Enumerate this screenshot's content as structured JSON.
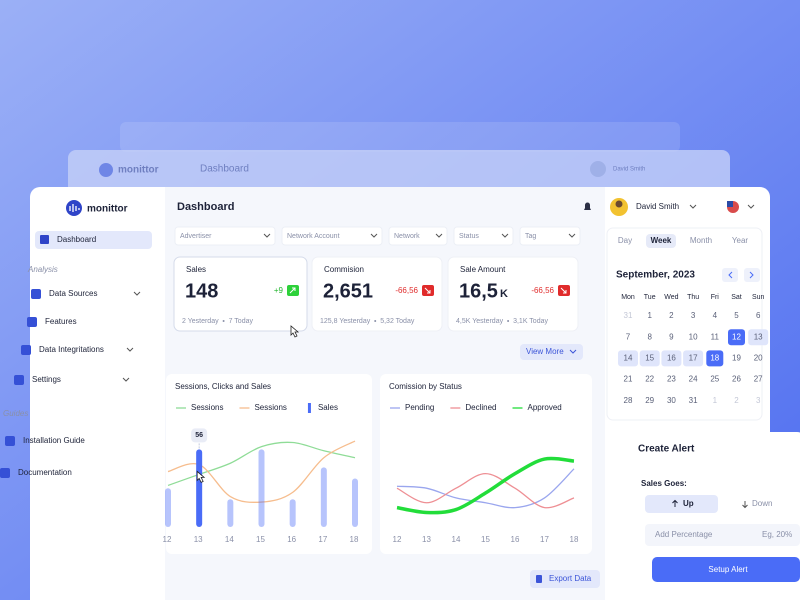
{
  "back_header": {
    "brand": "monittor",
    "title": "Dashboard",
    "user": "David Smith"
  },
  "sidebar": {
    "brand": "monittor",
    "active": "Dashboard",
    "sections": [
      {
        "title": "Analysis",
        "items": [
          "Data Sources",
          "Features",
          "Data Integritations",
          "Settings"
        ]
      },
      {
        "title": "Guides",
        "items": [
          "Installation Guide",
          "Documentation"
        ]
      }
    ]
  },
  "header": {
    "title": "Dashboard",
    "user": "David Smith"
  },
  "filters": [
    "Advertiser",
    "Network Account",
    "Network",
    "Status",
    "Tag"
  ],
  "stats": [
    {
      "label": "Sales",
      "value": "148",
      "change": "+9",
      "detail": [
        "2 Yesterday",
        "7 Today"
      ]
    },
    {
      "label": "Commision",
      "value": "2,651",
      "change": "-66,56",
      "detail": [
        "125,8 Yesterday",
        "5,32 Today"
      ]
    },
    {
      "label": "Sale Amount",
      "value": "16,5",
      "unit": "K",
      "change": "-66,56",
      "detail": [
        "4,5K Yesterday",
        "3,1K Today"
      ]
    }
  ],
  "view_more": "View More",
  "chart_data": [
    {
      "type": "combo",
      "title": "Sessions, Clicks and Sales",
      "categories": [
        "12",
        "13",
        "14",
        "15",
        "16",
        "17",
        "18"
      ],
      "ylim": [
        0,
        70
      ],
      "highlight": "13",
      "series": [
        {
          "name": "Sessions",
          "type": "line",
          "color": "#8fdc97",
          "values": [
            30,
            38,
            46,
            58,
            61,
            55,
            50
          ]
        },
        {
          "name": "Sessions",
          "type": "line",
          "color": "#f6bd8e",
          "values": [
            40,
            45,
            22,
            18,
            25,
            50,
            62
          ]
        },
        {
          "name": "Sales",
          "type": "bar",
          "color": "#4a6cf7",
          "values": [
            28,
            56,
            20,
            56,
            20,
            43,
            35
          ]
        }
      ]
    },
    {
      "type": "line",
      "title": "Comission by Status",
      "categories": [
        "12",
        "13",
        "14",
        "15",
        "16",
        "17",
        "18"
      ],
      "ylim": [
        0,
        100
      ],
      "series": [
        {
          "name": "Pending",
          "color": "#9aa6ee",
          "values": [
            42,
            40,
            30,
            25,
            20,
            30,
            60
          ]
        },
        {
          "name": "Declined",
          "color": "#ee8f94",
          "values": [
            40,
            25,
            40,
            55,
            40,
            20,
            30
          ]
        },
        {
          "name": "Approved",
          "color": "#22dd3a",
          "values": [
            20,
            15,
            18,
            35,
            55,
            70,
            68
          ]
        }
      ]
    }
  ],
  "calendar": {
    "tabs": [
      "Day",
      "Week",
      "Month",
      "Year"
    ],
    "active_tab": "Week",
    "month": "September, 2023",
    "weekdays": [
      "Mon",
      "Tue",
      "Wed",
      "Thu",
      "Fri",
      "Sat",
      "Sun"
    ],
    "weeks": [
      [
        31,
        1,
        2,
        3,
        4,
        5,
        6
      ],
      [
        7,
        8,
        9,
        10,
        11,
        12,
        13
      ],
      [
        14,
        15,
        16,
        17,
        18,
        19,
        20
      ],
      [
        21,
        22,
        23,
        24,
        25,
        26,
        27
      ],
      [
        28,
        29,
        30,
        31,
        1,
        2,
        3
      ]
    ],
    "selected_range": [
      12,
      18
    ]
  },
  "alert": {
    "title": "Create Alert",
    "label": "Sales Goes:",
    "up": "Up",
    "down": "Down",
    "input": "Add Percentage",
    "placeholder": "Eg, 20%",
    "button": "Setup Alert"
  },
  "export": "Export Data"
}
